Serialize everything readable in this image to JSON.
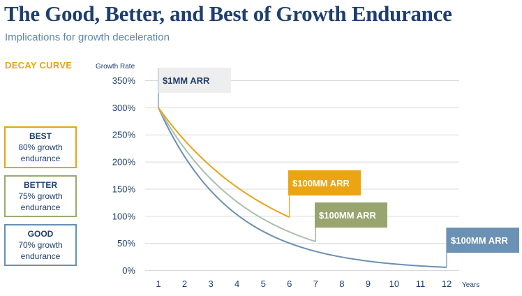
{
  "title": "The Good, Better, and Best of Growth Endurance",
  "subtitle": "Implications for growth deceleration",
  "decay_label": "DECAY CURVE",
  "legend": [
    {
      "name": "BEST",
      "line1": "80% growth",
      "line2": "endurance",
      "color": "#e8a319"
    },
    {
      "name": "BETTER",
      "line1": "75% growth",
      "line2": "endurance",
      "color": "#9aaa73"
    },
    {
      "name": "GOOD",
      "line1": "70% growth",
      "line2": "endurance",
      "color": "#6591b5"
    }
  ],
  "chart_data": {
    "type": "line",
    "ylabel": "Growth Rate",
    "xlabel": "Years",
    "ylim": [
      0,
      350
    ],
    "yticks": [
      0,
      50,
      100,
      150,
      200,
      250,
      300,
      350
    ],
    "ytick_labels": [
      "0%",
      "50%",
      "100%",
      "150%",
      "200%",
      "250%",
      "300%",
      "350%"
    ],
    "xlim": [
      1,
      12
    ],
    "xticks": [
      1,
      2,
      3,
      4,
      5,
      6,
      7,
      8,
      9,
      10,
      11,
      12
    ],
    "grid": true,
    "series": [
      {
        "name": "BEST",
        "color": "#e8a319",
        "decay": 0.8,
        "start": 300,
        "x": [
          1,
          2,
          3,
          4,
          5,
          6
        ],
        "values": [
          300,
          240,
          192,
          153.6,
          122.9,
          98.3
        ]
      },
      {
        "name": "BETTER",
        "color": "#a9bfae",
        "decay": 0.75,
        "start": 300,
        "x": [
          1,
          2,
          3,
          4,
          5,
          6,
          7
        ],
        "values": [
          300,
          225,
          168.8,
          126.6,
          94.9,
          71.2,
          53.4
        ]
      },
      {
        "name": "GOOD",
        "color": "#6b8fb0",
        "decay": 0.7,
        "start": 300,
        "x": [
          1,
          2,
          3,
          4,
          5,
          6,
          7,
          8,
          9,
          10,
          11,
          12
        ],
        "values": [
          300,
          210,
          147,
          102.9,
          72,
          50.4,
          35.3,
          24.7,
          17.3,
          12.1,
          8.5,
          5.9
        ]
      }
    ],
    "annotations": [
      {
        "text": "$1MM ARR",
        "x": 1,
        "y": 300,
        "fill": "#eeeeee",
        "text_color": "#1e3e6e"
      },
      {
        "text": "$100MM ARR",
        "x": 6,
        "y": 98.3,
        "fill": "#eca413",
        "text_color": "#ffffff"
      },
      {
        "text": "$100MM ARR",
        "x": 7,
        "y": 53.4,
        "fill": "#98a56f",
        "text_color": "#ffffff"
      },
      {
        "text": "$100MM ARR",
        "x": 12,
        "y": 5.9,
        "fill": "#6b91b4",
        "text_color": "#ffffff"
      }
    ]
  }
}
